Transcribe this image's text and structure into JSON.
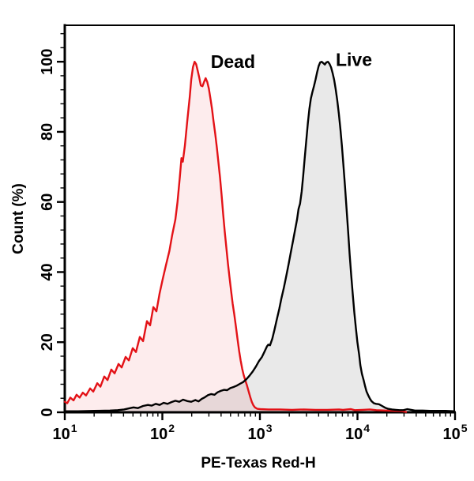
{
  "figure": {
    "background": "#ffffff"
  },
  "chart_data": {
    "type": "area",
    "title": "",
    "xlabel": "PE-Texas Red-H",
    "ylabel": "Count  (%)",
    "x_scale": "log10",
    "xlim": [
      10,
      100000
    ],
    "ylim": [
      0,
      110.4
    ],
    "grid": false,
    "legend_position": "none",
    "x_major_ticks": [
      {
        "value": 10,
        "label_base": "10",
        "label_exp": "1"
      },
      {
        "value": 100,
        "label_base": "10",
        "label_exp": "2"
      },
      {
        "value": 1000,
        "label_base": "10",
        "label_exp": "3"
      },
      {
        "value": 10000,
        "label_base": "10",
        "label_exp": "4"
      },
      {
        "value": 100000,
        "label_base": "10",
        "label_exp": "5"
      }
    ],
    "x_minor_mantissas": [
      2,
      3,
      4,
      5,
      6,
      7,
      8,
      9
    ],
    "y_major_ticks": [
      {
        "value": 0,
        "label": "0"
      },
      {
        "value": 20,
        "label": "20"
      },
      {
        "value": 40,
        "label": "40"
      },
      {
        "value": 60,
        "label": "60"
      },
      {
        "value": 80,
        "label": "80"
      },
      {
        "value": 100,
        "label": "100"
      }
    ],
    "y_minor_step": 4,
    "series": [
      {
        "name": "Dead",
        "line_color": "#e31217",
        "fill_color": "rgba(227,18,23,0.08)",
        "points": [
          [
            10,
            3.0
          ],
          [
            10.6,
            2.6
          ],
          [
            11.4,
            4.2
          ],
          [
            12.3,
            3.4
          ],
          [
            13.2,
            5.0
          ],
          [
            14.2,
            4.2
          ],
          [
            15.3,
            5.6
          ],
          [
            16.5,
            4.8
          ],
          [
            18.2,
            6.8
          ],
          [
            19.6,
            5.9
          ],
          [
            21.5,
            8.3
          ],
          [
            23.2,
            7.3
          ],
          [
            25.4,
            10.2
          ],
          [
            27.4,
            9.2
          ],
          [
            30,
            12.2
          ],
          [
            32.4,
            11.1
          ],
          [
            35.5,
            13.8
          ],
          [
            38.3,
            12.8
          ],
          [
            42,
            15.8
          ],
          [
            45.4,
            14.8
          ],
          [
            49.7,
            18.3
          ],
          [
            53.6,
            17.2
          ],
          [
            58.8,
            21.5
          ],
          [
            63.4,
            20.3
          ],
          [
            69.5,
            26.0
          ],
          [
            74.9,
            24.8
          ],
          [
            80.8,
            30.0
          ],
          [
            86.9,
            28.8
          ],
          [
            93.8,
            34.0
          ],
          [
            101,
            38.0
          ],
          [
            109,
            42.0
          ],
          [
            118,
            46.0
          ],
          [
            126,
            50.5
          ],
          [
            136,
            55.0
          ],
          [
            143,
            60.0
          ],
          [
            151,
            67.0
          ],
          [
            157,
            72.5
          ],
          [
            162,
            71.5
          ],
          [
            170,
            76.0
          ],
          [
            180,
            83.0
          ],
          [
            191,
            90.0
          ],
          [
            198,
            95.0
          ],
          [
            206,
            98.5
          ],
          [
            214,
            100.0
          ],
          [
            222,
            99.3
          ],
          [
            230,
            97.5
          ],
          [
            239,
            95.5
          ],
          [
            248,
            93.2
          ],
          [
            258,
            93.0
          ],
          [
            268,
            94.3
          ],
          [
            278,
            95.3
          ],
          [
            289,
            94.2
          ],
          [
            300,
            92.3
          ],
          [
            311,
            89.5
          ],
          [
            323,
            86.5
          ],
          [
            335,
            83.0
          ],
          [
            348,
            79.5
          ],
          [
            362,
            75.5
          ],
          [
            375,
            71.5
          ],
          [
            390,
            67.0
          ],
          [
            405,
            62.0
          ],
          [
            420,
            56.5
          ],
          [
            436,
            51.5
          ],
          [
            453,
            47.0
          ],
          [
            470,
            42.5
          ],
          [
            488,
            38.5
          ],
          [
            507,
            34.5
          ],
          [
            526,
            31.0
          ],
          [
            546,
            28.0
          ],
          [
            567,
            24.5
          ],
          [
            589,
            21.0
          ],
          [
            612,
            17.5
          ],
          [
            635,
            14.8
          ],
          [
            659,
            12.4
          ],
          [
            684,
            10.5
          ],
          [
            711,
            9.0
          ],
          [
            738,
            7.6
          ],
          [
            766,
            6.0
          ],
          [
            795,
            4.4
          ],
          [
            826,
            3.0
          ],
          [
            857,
            2.0
          ],
          [
            890,
            1.4
          ],
          [
            941,
            1.0
          ],
          [
            1010,
            0.9
          ],
          [
            1220,
            0.8
          ],
          [
            1610,
            0.8
          ],
          [
            2130,
            0.7
          ],
          [
            2810,
            0.8
          ],
          [
            3710,
            0.7
          ],
          [
            4910,
            0.7
          ],
          [
            6480,
            0.8
          ],
          [
            7090,
            0.7
          ],
          [
            8570,
            0.9
          ],
          [
            9370,
            0.6
          ],
          [
            11200,
            0.7
          ],
          [
            13400,
            0.8
          ],
          [
            15600,
            0.6
          ],
          [
            19800,
            0.5
          ],
          [
            23800,
            0.4
          ],
          [
            28700,
            0.3
          ],
          [
            31500,
            0.1
          ]
        ]
      },
      {
        "name": "Live",
        "line_color": "#000000",
        "fill_color": "rgba(0,0,0,0.085)",
        "points": [
          [
            10,
            0.3
          ],
          [
            13.7,
            0.3
          ],
          [
            20,
            0.4
          ],
          [
            29,
            0.5
          ],
          [
            34.9,
            0.6
          ],
          [
            40.5,
            0.8
          ],
          [
            45.4,
            1.1
          ],
          [
            50.6,
            1.4
          ],
          [
            56,
            1.2
          ],
          [
            63.4,
            1.8
          ],
          [
            71.2,
            2.1
          ],
          [
            77.6,
            1.9
          ],
          [
            85.5,
            2.4
          ],
          [
            93.8,
            2.1
          ],
          [
            103,
            2.7
          ],
          [
            113,
            2.4
          ],
          [
            124,
            2.9
          ],
          [
            136,
            3.3
          ],
          [
            149,
            3.0
          ],
          [
            163,
            3.6
          ],
          [
            180,
            3.2
          ],
          [
            198,
            3.0
          ],
          [
            218,
            3.5
          ],
          [
            235,
            3.1
          ],
          [
            253,
            3.8
          ],
          [
            273,
            4.3
          ],
          [
            294,
            4.9
          ],
          [
            317,
            5.2
          ],
          [
            342,
            5.0
          ],
          [
            368,
            5.7
          ],
          [
            397,
            6.1
          ],
          [
            428,
            6.4
          ],
          [
            461,
            6.3
          ],
          [
            497,
            6.9
          ],
          [
            536,
            7.2
          ],
          [
            578,
            7.6
          ],
          [
            623,
            8.1
          ],
          [
            672,
            8.6
          ],
          [
            724,
            9.4
          ],
          [
            781,
            10.4
          ],
          [
            842,
            11.6
          ],
          [
            907,
            13.0
          ],
          [
            978,
            14.6
          ],
          [
            1050,
            15.8
          ],
          [
            1110,
            17.2
          ],
          [
            1180,
            18.8
          ],
          [
            1220,
            19.3
          ],
          [
            1270,
            19.1
          ],
          [
            1340,
            21.0
          ],
          [
            1410,
            23.5
          ],
          [
            1490,
            26.5
          ],
          [
            1580,
            29.5
          ],
          [
            1660,
            32.5
          ],
          [
            1760,
            35.5
          ],
          [
            1860,
            38.8
          ],
          [
            1960,
            42.0
          ],
          [
            2070,
            45.5
          ],
          [
            2190,
            49.0
          ],
          [
            2310,
            52.5
          ],
          [
            2400,
            55.0
          ],
          [
            2490,
            58.0
          ],
          [
            2580,
            59.5
          ],
          [
            2680,
            63.0
          ],
          [
            2780,
            67.5
          ],
          [
            2880,
            72.5
          ],
          [
            2990,
            77.5
          ],
          [
            3100,
            82.5
          ],
          [
            3210,
            86.5
          ],
          [
            3330,
            89.5
          ],
          [
            3460,
            91.5
          ],
          [
            3580,
            93.0
          ],
          [
            3720,
            95.0
          ],
          [
            3860,
            97.0
          ],
          [
            4000,
            98.8
          ],
          [
            4150,
            99.8
          ],
          [
            4300,
            100.0
          ],
          [
            4460,
            99.6
          ],
          [
            4630,
            99.2
          ],
          [
            4800,
            99.8
          ],
          [
            4980,
            100.0
          ],
          [
            5170,
            99.4
          ],
          [
            5360,
            98.4
          ],
          [
            5560,
            96.8
          ],
          [
            5770,
            94.8
          ],
          [
            5980,
            92.2
          ],
          [
            6210,
            89.0
          ],
          [
            6440,
            85.2
          ],
          [
            6680,
            80.8
          ],
          [
            6930,
            76.0
          ],
          [
            7180,
            70.5
          ],
          [
            7450,
            64.5
          ],
          [
            7730,
            58.0
          ],
          [
            8020,
            51.5
          ],
          [
            8320,
            45.0
          ],
          [
            8630,
            39.0
          ],
          [
            8950,
            33.5
          ],
          [
            9280,
            28.5
          ],
          [
            9630,
            24.0
          ],
          [
            9990,
            20.0
          ],
          [
            10400,
            16.5
          ],
          [
            10700,
            13.5
          ],
          [
            11100,
            11.0
          ],
          [
            11600,
            9.0
          ],
          [
            12000,
            7.3
          ],
          [
            12400,
            5.9
          ],
          [
            12900,
            4.8
          ],
          [
            13400,
            3.9
          ],
          [
            13900,
            3.2
          ],
          [
            14700,
            2.6
          ],
          [
            15500,
            2.4
          ],
          [
            16600,
            2.3
          ],
          [
            17900,
            1.8
          ],
          [
            19200,
            1.3
          ],
          [
            20600,
            1.0
          ],
          [
            22600,
            0.8
          ],
          [
            24700,
            0.7
          ],
          [
            27000,
            0.6
          ],
          [
            29600,
            0.6
          ],
          [
            32400,
            0.9
          ],
          [
            35500,
            0.7
          ],
          [
            38800,
            0.5
          ],
          [
            46500,
            0.5
          ],
          [
            55700,
            0.4
          ],
          [
            66700,
            0.4
          ],
          [
            79900,
            0.4
          ],
          [
            98000,
            0.3
          ]
        ]
      }
    ],
    "annotations": [
      {
        "text": "Dead",
        "x": 530,
        "y": 98.2,
        "color": "#e31217"
      },
      {
        "text": "Live",
        "x": 9200,
        "y": 98.8,
        "color": "#000000"
      }
    ]
  }
}
